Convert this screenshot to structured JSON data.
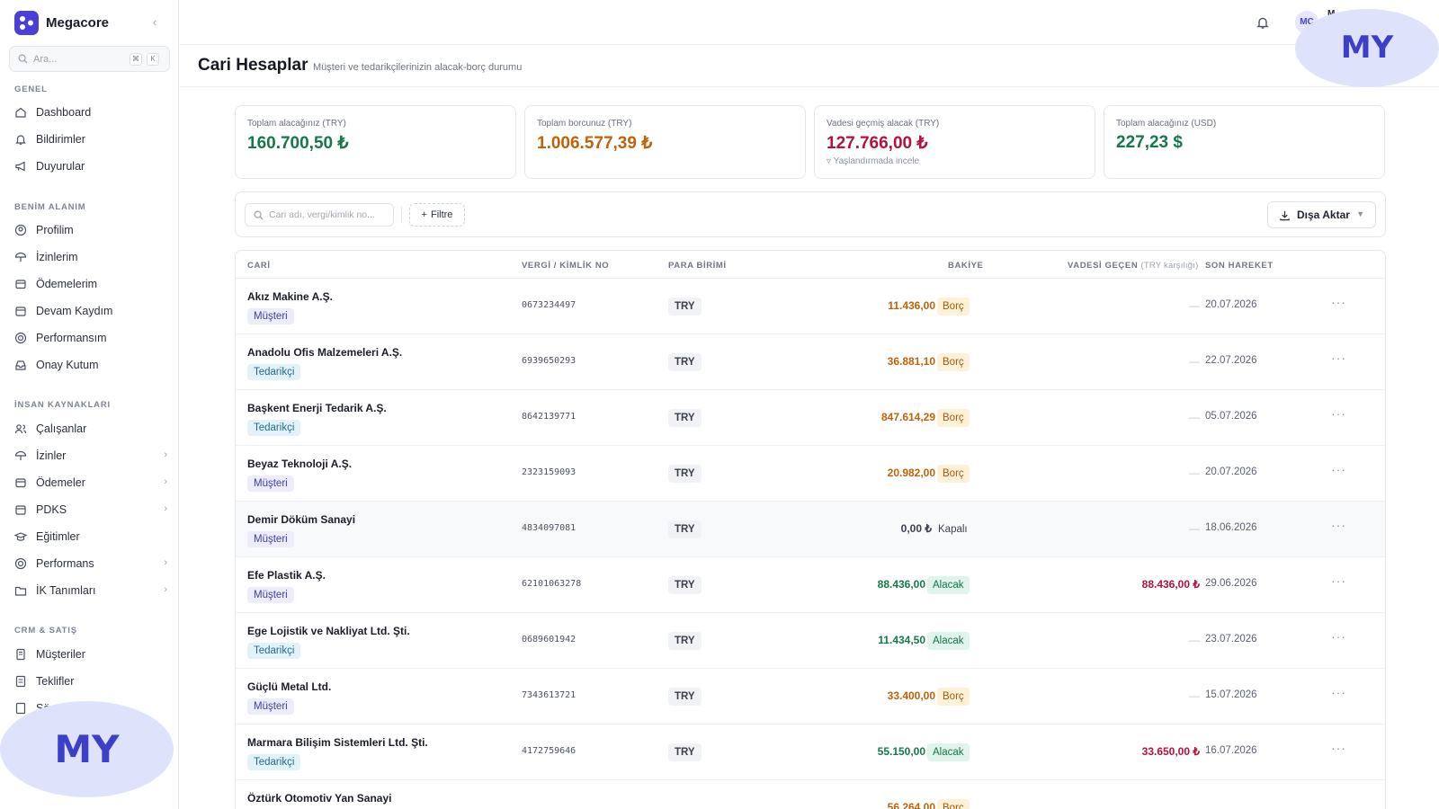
{
  "app": {
    "name": "Megacore"
  },
  "sidebar": {
    "search_placeholder": "Ara...",
    "shortcut_keys": [
      "⌘",
      "K"
    ],
    "sections": [
      {
        "title": "GENEL",
        "items": [
          {
            "label": "Dashboard",
            "icon": "home-icon"
          },
          {
            "label": "Bildirimler",
            "icon": "bell-icon"
          },
          {
            "label": "Duyurular",
            "icon": "megaphone-icon"
          }
        ]
      },
      {
        "title": "BENİM ALANIM",
        "items": [
          {
            "label": "Profilim",
            "icon": "user-circle-icon"
          },
          {
            "label": "İzinlerim",
            "icon": "umbrella-icon"
          },
          {
            "label": "Ödemelerim",
            "icon": "wallet-icon"
          },
          {
            "label": "Devam Kaydım",
            "icon": "calendar-icon"
          },
          {
            "label": "Performansım",
            "icon": "target-icon"
          },
          {
            "label": "Onay Kutum",
            "icon": "inbox-icon"
          }
        ]
      },
      {
        "title": "İNSAN KAYNAKLARI",
        "items": [
          {
            "label": "Çalışanlar",
            "icon": "users-icon"
          },
          {
            "label": "İzinler",
            "icon": "umbrella-icon",
            "has_children": true
          },
          {
            "label": "Ödemeler",
            "icon": "wallet-icon",
            "has_children": true
          },
          {
            "label": "PDKS",
            "icon": "calendar-icon",
            "has_children": true
          },
          {
            "label": "Eğitimler",
            "icon": "graduation-cap-icon"
          },
          {
            "label": "Performans",
            "icon": "target-icon",
            "has_children": true
          },
          {
            "label": "İK Tanımları",
            "icon": "folder-icon",
            "has_children": true
          }
        ]
      },
      {
        "title": "CRM & SATIŞ",
        "items": [
          {
            "label": "Müşteriler",
            "icon": "building-icon"
          },
          {
            "label": "Teklifler",
            "icon": "document-icon"
          },
          {
            "label": "Sö",
            "icon": "document-icon"
          }
        ]
      }
    ]
  },
  "topbar": {
    "avatar_initials": "MC",
    "user_name": "M… …ya"
  },
  "page": {
    "title": "Cari Hesaplar",
    "subtitle": "Müşteri ve tedarikçilerinizin alacak-borç durumu"
  },
  "stats": [
    {
      "label": "Toplam alacağınız (TRY)",
      "value": "160.700,50 ₺",
      "color": "#16784a"
    },
    {
      "label": "Toplam borcunuz (TRY)",
      "value": "1.006.577,39 ₺",
      "color": "#c0620a"
    },
    {
      "label": "Vadesi geçmiş alacak (TRY)",
      "value": "127.766,00 ₺",
      "color": "#b4123e",
      "hint": "Yaşlandırmada incele"
    },
    {
      "label": "Toplam alacağınız (USD)",
      "value": "227,23 $",
      "color": "#16784a"
    }
  ],
  "toolbar": {
    "search_placeholder": "Cari adı, vergi/kimlik no...",
    "filter_label": "Filtre",
    "export_label": "Dışa Aktar"
  },
  "table": {
    "headers": {
      "cari": "CARİ",
      "tax": "VERGİ / KİMLİK NO",
      "currency": "PARA BİRİMİ",
      "balance": "BAKİYE",
      "overdue": "VADESİ GEÇEN",
      "overdue_note": "(TRY karşılığı)",
      "last": "SON HAREKET"
    },
    "rows": [
      {
        "name": "Akız Makine A.Ş.",
        "type": "Müşteri",
        "tax": "0673234497",
        "currency": "TRY",
        "balance": "11.436,00 ₺",
        "status": "Borç",
        "overdue": "—",
        "date": "20.07.2026"
      },
      {
        "name": "Anadolu Ofis Malzemeleri A.Ş.",
        "type": "Tedarikçi",
        "tax": "6939650293",
        "currency": "TRY",
        "balance": "36.881,10 ₺",
        "status": "Borç",
        "overdue": "—",
        "date": "22.07.2026"
      },
      {
        "name": "Başkent Enerji Tedarik A.Ş.",
        "type": "Tedarikçi",
        "tax": "8642139771",
        "currency": "TRY",
        "balance": "847.614,29 ₺",
        "status": "Borç",
        "overdue": "—",
        "date": "05.07.2026"
      },
      {
        "name": "Beyaz Teknoloji A.Ş.",
        "type": "Müşteri",
        "tax": "2323159093",
        "currency": "TRY",
        "balance": "20.982,00 ₺",
        "status": "Borç",
        "overdue": "—",
        "date": "20.07.2026"
      },
      {
        "name": "Demir Döküm Sanayi",
        "type": "Müşteri",
        "tax": "4834097081",
        "currency": "TRY",
        "balance": "0,00 ₺",
        "status": "Kapalı",
        "overdue": "—",
        "date": "18.06.2026"
      },
      {
        "name": "Efe Plastik A.Ş.",
        "type": "Müşteri",
        "tax": "62101063278",
        "currency": "TRY",
        "balance": "88.436,00 ₺",
        "status": "Alacak",
        "overdue": "88.436,00 ₺",
        "date": "29.06.2026"
      },
      {
        "name": "Ege Lojistik ve Nakliyat Ltd. Şti.",
        "type": "Tedarikçi",
        "tax": "0689601942",
        "currency": "TRY",
        "balance": "11.434,50 ₺",
        "status": "Alacak",
        "overdue": "—",
        "date": "23.07.2026"
      },
      {
        "name": "Güçlü Metal Ltd.",
        "type": "Müşteri",
        "tax": "7343613721",
        "currency": "TRY",
        "balance": "33.400,00 ₺",
        "status": "Borç",
        "overdue": "—",
        "date": "15.07.2026"
      },
      {
        "name": "Marmara Bilişim Sistemleri Ltd. Şti.",
        "type": "Tedarikçi",
        "tax": "4172759646",
        "currency": "TRY",
        "balance": "55.150,00 ₺",
        "status": "Alacak",
        "overdue": "33.650,00 ₺",
        "date": "16.07.2026"
      },
      {
        "name": "Öztürk Otomotiv Yan Sanayi",
        "type": "",
        "tax": "",
        "currency": "",
        "balance": "56.264,00 ₺",
        "status": "Borç",
        "overdue": "",
        "date": ""
      }
    ]
  },
  "watermark": "MY",
  "colors": {
    "accent": "#4a3fd6",
    "debt": "#c0620a",
    "credit": "#16784a",
    "overdue": "#b4123e"
  }
}
